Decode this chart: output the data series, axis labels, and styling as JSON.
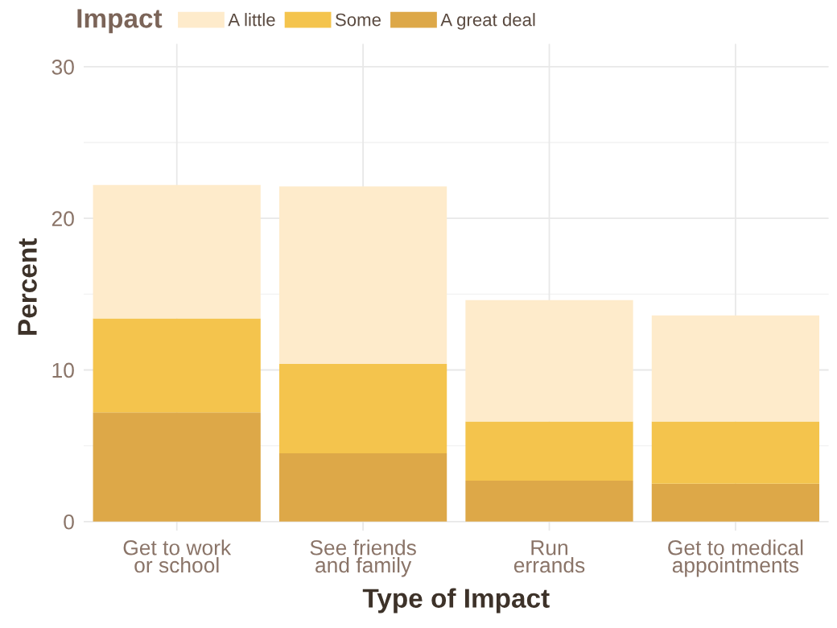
{
  "chart_data": {
    "type": "bar",
    "stacked": true,
    "xlabel": "Type of Impact",
    "ylabel": "Percent",
    "legend_title": "Impact",
    "categories": [
      "Get to work or school",
      "See friends and family",
      "Run errands",
      "Get to medical appointments"
    ],
    "series": [
      {
        "name": "A great deal",
        "color": "#dda848",
        "values": [
          7.2,
          4.5,
          2.7,
          2.5
        ]
      },
      {
        "name": "Some",
        "color": "#f4c44d",
        "values": [
          6.2,
          5.9,
          3.9,
          4.1
        ]
      },
      {
        "name": "A little",
        "color": "#feebcb",
        "values": [
          8.8,
          11.7,
          8.0,
          7.0
        ]
      }
    ],
    "ylim": [
      -0.6,
      31.5
    ],
    "yticks": [
      0,
      10,
      20,
      30
    ],
    "grid": true,
    "legend": "top left"
  }
}
